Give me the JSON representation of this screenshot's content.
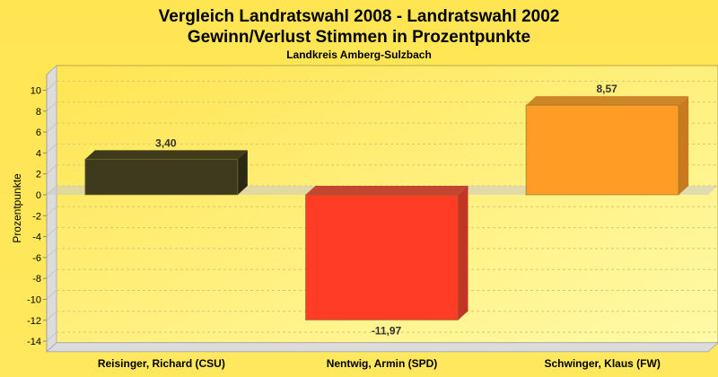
{
  "chart_data": {
    "type": "bar",
    "title": "Vergleich Landratswahl 2008 - Landratswahl 2002",
    "subtitle": "Gewinn/Verlust Stimmen in Prozentpunkte",
    "subtitle2": "Landkreis Amberg-Sulzbach",
    "xlabel": "",
    "ylabel": "Prozentpunkte",
    "ylim": [
      -15,
      11.5
    ],
    "yticks": [
      10,
      8,
      6,
      4,
      2,
      0,
      -2,
      -4,
      -6,
      -8,
      -10,
      -12,
      -14
    ],
    "grid": true,
    "categories": [
      "Reisinger, Richard (CSU)",
      "Nentwig, Armin (SPD)",
      "Schwinger, Klaus (FW)"
    ],
    "values": [
      3.4,
      -11.97,
      8.57
    ],
    "value_labels": [
      "3,40",
      "-11,97",
      "8,57"
    ],
    "colors": [
      "#3f3a1e",
      "#ff3c26",
      "#ff9c26"
    ],
    "side_colors": [
      "#2a2712",
      "#c23524",
      "#c97a1e"
    ]
  }
}
